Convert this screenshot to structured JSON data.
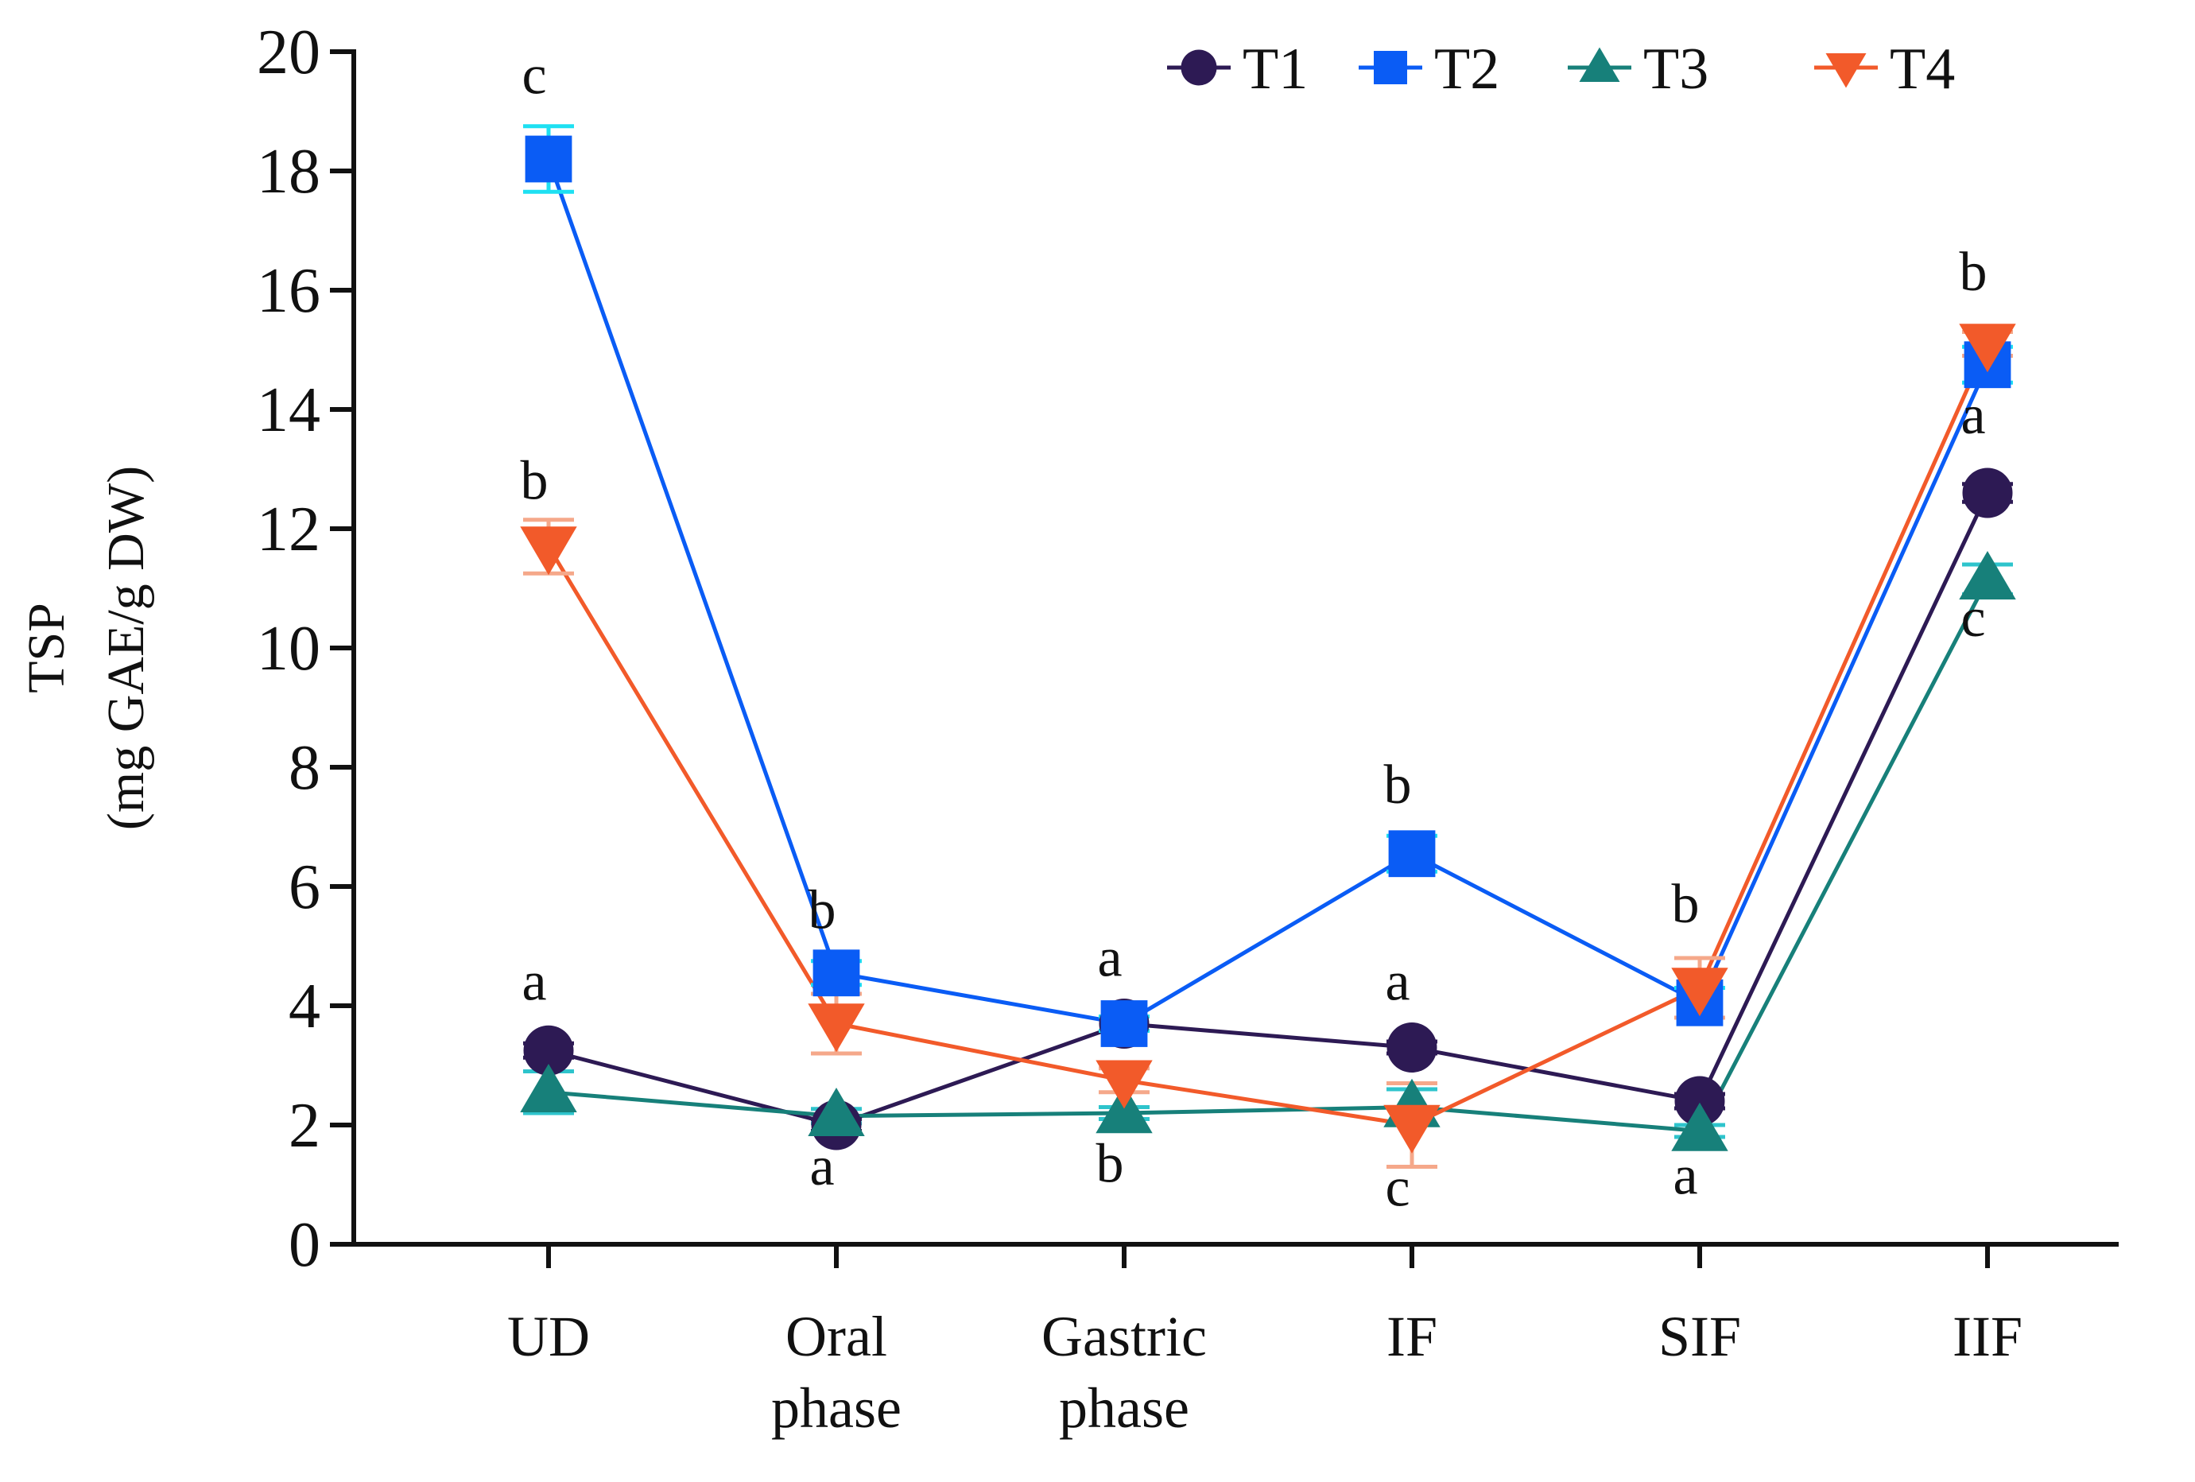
{
  "chart_data": {
    "type": "line",
    "title": "",
    "xlabel": "",
    "ylabel": [
      "TSP",
      "(mg GAE/g DW)"
    ],
    "ylim": [
      0,
      20
    ],
    "yticks": [
      0,
      2,
      4,
      6,
      8,
      10,
      12,
      14,
      16,
      18,
      20
    ],
    "categories": [
      [
        "UD"
      ],
      [
        "Oral",
        "phase"
      ],
      [
        "Gastric",
        "phase"
      ],
      [
        "IF"
      ],
      [
        "SIF"
      ],
      [
        "IIF"
      ]
    ],
    "legend_position": "top-right",
    "series": [
      {
        "name": "T1",
        "marker": "circle",
        "color": "#2d1a54",
        "errcolor": "#2d1a54",
        "values": [
          3.25,
          2.0,
          3.7,
          3.3,
          2.4,
          12.6
        ],
        "errors": [
          0.12,
          0.1,
          0.12,
          0.1,
          0.12,
          0.15
        ]
      },
      {
        "name": "T2",
        "marker": "square",
        "color": "#0a5cf5",
        "errcolor": "#1ee0f2",
        "values": [
          18.2,
          4.55,
          3.7,
          6.55,
          4.05,
          14.75
        ],
        "errors": [
          0.55,
          0.2,
          0.12,
          0.3,
          0.25,
          0.3
        ]
      },
      {
        "name": "T3",
        "marker": "triangle-up",
        "color": "#17807a",
        "errcolor": "#2ec4cc",
        "values": [
          2.55,
          2.15,
          2.2,
          2.3,
          1.9,
          11.15
        ],
        "errors": [
          0.35,
          0.12,
          0.1,
          0.3,
          0.1,
          0.25
        ]
      },
      {
        "name": "T4",
        "marker": "triangle-down",
        "color": "#f25a2a",
        "errcolor": "#f5a88a",
        "values": [
          11.7,
          3.7,
          2.75,
          2.0,
          4.3,
          15.1
        ],
        "errors": [
          0.45,
          0.5,
          0.2,
          0.7,
          0.5,
          0.2
        ]
      }
    ],
    "annotations": [
      {
        "text": "c",
        "x": 0,
        "y": 19.3
      },
      {
        "text": "b",
        "x": 0,
        "y": 12.5
      },
      {
        "text": "a",
        "x": 0,
        "y": 4.1
      },
      {
        "text": "b",
        "x": 1,
        "y": 5.3
      },
      {
        "text": "a",
        "x": 1,
        "y": 1.0
      },
      {
        "text": "a",
        "x": 2,
        "y": 4.5
      },
      {
        "text": "b",
        "x": 2,
        "y": 1.05
      },
      {
        "text": "b",
        "x": 3,
        "y": 7.4
      },
      {
        "text": "a",
        "x": 3,
        "y": 4.1
      },
      {
        "text": "c",
        "x": 3,
        "y": 0.65
      },
      {
        "text": "b",
        "x": 4,
        "y": 5.4
      },
      {
        "text": "a",
        "x": 4,
        "y": 0.85
      },
      {
        "text": "b",
        "x": 5,
        "y": 16.0
      },
      {
        "text": "a",
        "x": 5,
        "y": 13.6
      },
      {
        "text": "c",
        "x": 5,
        "y": 10.2
      }
    ]
  }
}
